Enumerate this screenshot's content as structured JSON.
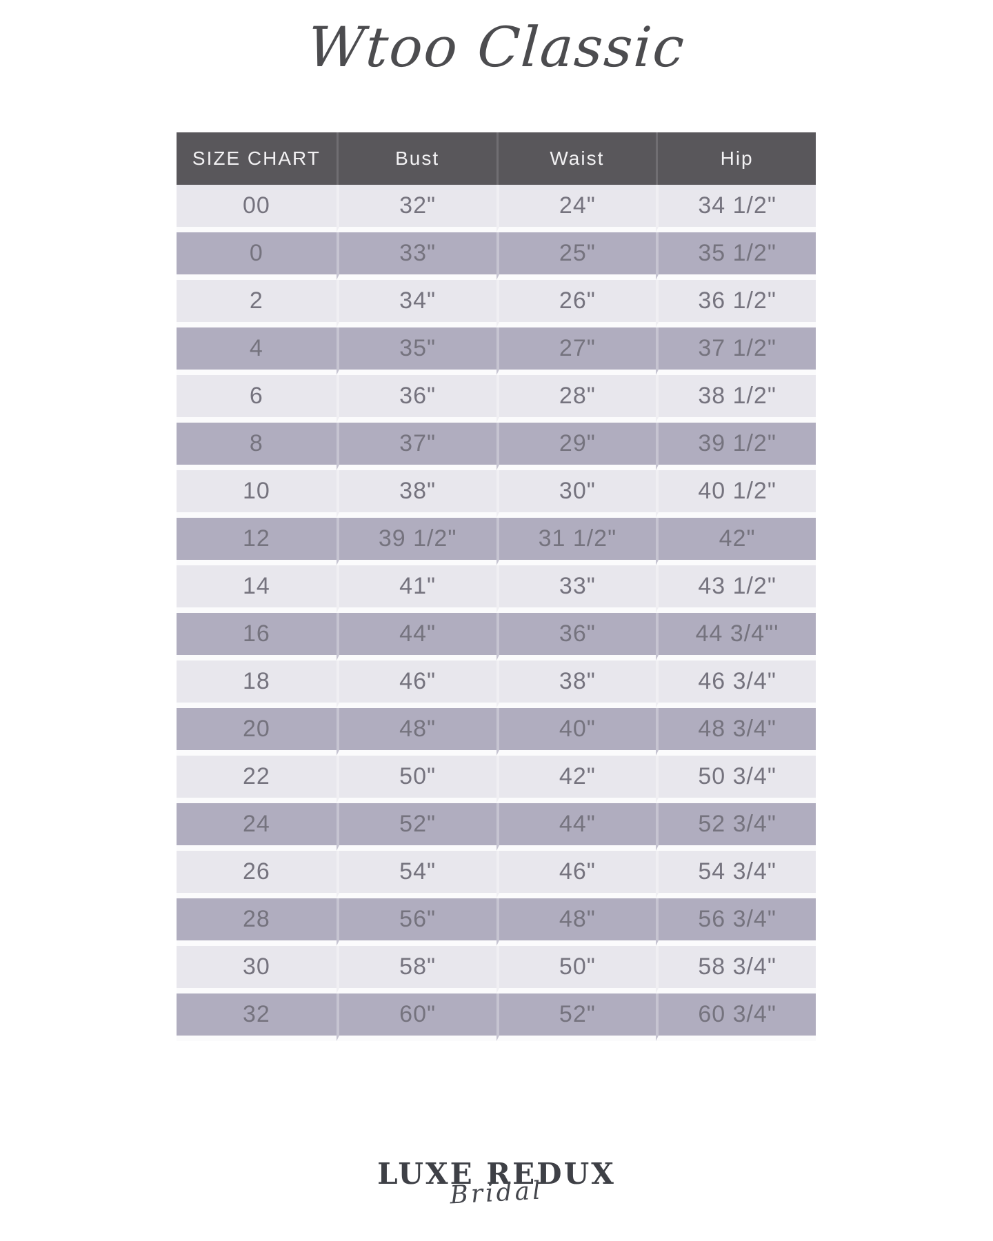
{
  "page": {
    "title": "Wtoo Classic"
  },
  "table": {
    "headers": [
      "SIZE CHART",
      "Bust",
      "Waist",
      "Hip"
    ],
    "rows": [
      {
        "size": "00",
        "bust": "32\"",
        "waist": "24\"",
        "hip": "34 1/2\""
      },
      {
        "size": "0",
        "bust": "33\"",
        "waist": "25\"",
        "hip": "35 1/2\""
      },
      {
        "size": "2",
        "bust": "34\"",
        "waist": "26\"",
        "hip": "36 1/2\""
      },
      {
        "size": "4",
        "bust": "35\"",
        "waist": "27\"",
        "hip": "37 1/2\""
      },
      {
        "size": "6",
        "bust": "36\"",
        "waist": "28\"",
        "hip": "38 1/2\""
      },
      {
        "size": "8",
        "bust": "37\"",
        "waist": "29\"",
        "hip": "39 1/2\""
      },
      {
        "size": "10",
        "bust": "38\"",
        "waist": "30\"",
        "hip": "40 1/2\""
      },
      {
        "size": "12",
        "bust": "39 1/2\"",
        "waist": "31 1/2\"",
        "hip": "42\""
      },
      {
        "size": "14",
        "bust": "41\"",
        "waist": "33\"",
        "hip": "43 1/2\""
      },
      {
        "size": "16",
        "bust": "44\"",
        "waist": "36\"",
        "hip": "44 3/4\"'"
      },
      {
        "size": "18",
        "bust": "46\"",
        "waist": "38\"",
        "hip": "46 3/4\""
      },
      {
        "size": "20",
        "bust": "48\"",
        "waist": "40\"",
        "hip": "48 3/4\""
      },
      {
        "size": "22",
        "bust": "50\"",
        "waist": "42\"",
        "hip": "50 3/4\""
      },
      {
        "size": "24",
        "bust": "52\"",
        "waist": "44\"",
        "hip": "52 3/4\""
      },
      {
        "size": "26",
        "bust": "54\"",
        "waist": "46\"",
        "hip": "54 3/4\""
      },
      {
        "size": "28",
        "bust": "56\"",
        "waist": "48\"",
        "hip": "56 3/4\""
      },
      {
        "size": "30",
        "bust": "58\"",
        "waist": "50\"",
        "hip": "58 3/4\""
      },
      {
        "size": "32",
        "bust": "60\"",
        "waist": "52\"",
        "hip": "60 3/4\""
      }
    ]
  },
  "logo": {
    "line1": "LUXE REDUX",
    "line2": "Bridal"
  },
  "colors": {
    "page_bg": "#ffffff",
    "header_bg": "#59575b",
    "header_text": "#f2f1f3",
    "row_light": "#e8e7ed",
    "row_dark": "#b0adbf",
    "row_gap": "#fbfbfc",
    "cell_text": "#75737e",
    "title_color": "#4c4c4f",
    "logo_color": "#3e4046"
  }
}
